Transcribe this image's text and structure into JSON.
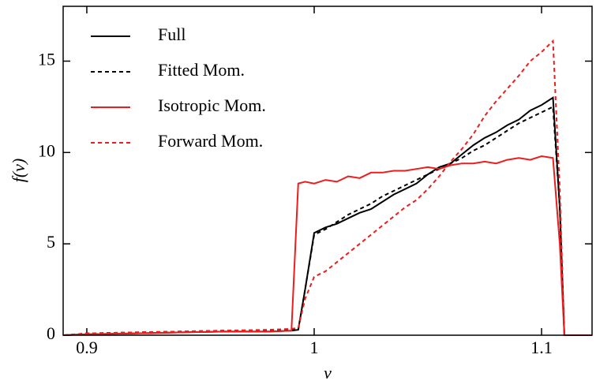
{
  "chart_data": {
    "type": "line",
    "xlabel": "ν",
    "ylabel": "f(ν)",
    "x": [
      0.89,
      0.9,
      0.92,
      0.94,
      0.96,
      0.98,
      0.99,
      0.993,
      0.996,
      1.0,
      1.005,
      1.01,
      1.015,
      1.02,
      1.025,
      1.03,
      1.035,
      1.04,
      1.045,
      1.05,
      1.055,
      1.06,
      1.065,
      1.07,
      1.075,
      1.08,
      1.085,
      1.09,
      1.095,
      1.1,
      1.105,
      1.108,
      1.11,
      1.122
    ],
    "series": [
      {
        "name": "Full",
        "color": "#000000",
        "dash": false,
        "values": [
          0,
          0.05,
          0.1,
          0.15,
          0.2,
          0.2,
          0.25,
          0.3,
          2.5,
          5.6,
          5.9,
          6.1,
          6.4,
          6.7,
          6.9,
          7.3,
          7.7,
          8.0,
          8.3,
          8.8,
          9.2,
          9.4,
          9.9,
          10.4,
          10.8,
          11.1,
          11.5,
          11.8,
          12.3,
          12.6,
          13.0,
          7.0,
          0,
          0
        ]
      },
      {
        "name": "Fitted Mom.",
        "color": "#000000",
        "dash": true,
        "values": [
          0,
          0.1,
          0.15,
          0.2,
          0.25,
          0.25,
          0.3,
          0.3,
          2.5,
          5.5,
          5.8,
          6.2,
          6.6,
          6.9,
          7.2,
          7.6,
          7.9,
          8.2,
          8.5,
          8.8,
          9.1,
          9.4,
          9.7,
          10.1,
          10.4,
          10.8,
          11.2,
          11.6,
          11.9,
          12.2,
          12.5,
          7.0,
          0,
          0
        ]
      },
      {
        "name": "Isotropic Mom.",
        "color": "#ee1c1c",
        "dash": false,
        "values": [
          0,
          0.05,
          0.1,
          0.15,
          0.2,
          0.2,
          0.25,
          8.3,
          8.4,
          8.3,
          8.5,
          8.4,
          8.7,
          8.6,
          8.9,
          8.9,
          9.0,
          9.0,
          9.1,
          9.2,
          9.1,
          9.3,
          9.4,
          9.4,
          9.5,
          9.4,
          9.6,
          9.7,
          9.6,
          9.8,
          9.7,
          5.0,
          0,
          0
        ]
      },
      {
        "name": "Forward Mom.",
        "color": "#ee1c1c",
        "dash": true,
        "values": [
          0,
          0.1,
          0.15,
          0.2,
          0.25,
          0.3,
          0.35,
          0.4,
          2.0,
          3.2,
          3.5,
          4.0,
          4.5,
          5.0,
          5.5,
          6.0,
          6.5,
          7.0,
          7.4,
          8.0,
          8.7,
          9.5,
          10.2,
          11.0,
          12.0,
          12.8,
          13.5,
          14.2,
          15.0,
          15.5,
          16.1,
          8.0,
          0,
          0
        ]
      }
    ],
    "xlim": [
      0.8896,
      1.1222
    ],
    "ylim": [
      0,
      18
    ],
    "xticks": [
      0.9,
      1,
      1.1
    ],
    "yticks": [
      0,
      5,
      10,
      15
    ],
    "legend": "upper-left"
  }
}
